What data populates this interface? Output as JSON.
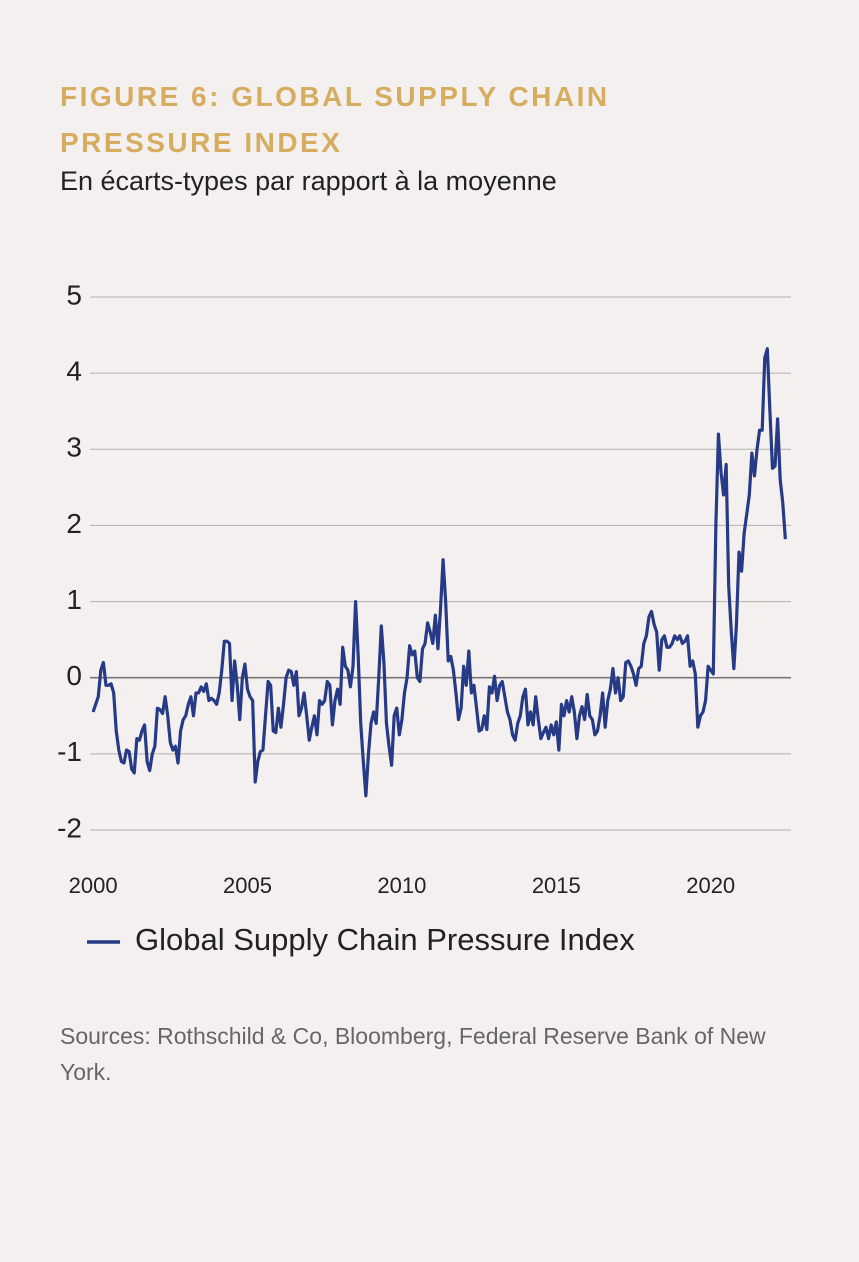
{
  "chart_data": {
    "type": "line",
    "title": "FIGURE 6: GLOBAL SUPPLY CHAIN PRESSURE INDEX",
    "subtitle": "En écarts-types par rapport à la moyenne",
    "source": "Sources: Rothschild & Co, Bloomberg, Federal Reserve Bank of New York.",
    "xlim": [
      1999.9,
      2022.6
    ],
    "xticks": [
      2000,
      2005,
      2010,
      2015,
      2020
    ],
    "ylim": [
      -2,
      5
    ],
    "yticks": [
      5,
      4,
      3,
      2,
      1,
      0,
      -1,
      -2
    ],
    "grid": true,
    "x": [
      2000,
      2000.083,
      2000.167,
      2000.25,
      2000.333,
      2000.417,
      2000.5,
      2000.583,
      2000.667,
      2000.75,
      2000.833,
      2000.917,
      2001,
      2001.083,
      2001.167,
      2001.25,
      2001.333,
      2001.417,
      2001.5,
      2001.583,
      2001.667,
      2001.75,
      2001.833,
      2001.917,
      2002,
      2002.083,
      2002.167,
      2002.25,
      2002.333,
      2002.417,
      2002.5,
      2002.583,
      2002.667,
      2002.75,
      2002.833,
      2002.917,
      2003,
      2003.083,
      2003.167,
      2003.25,
      2003.333,
      2003.417,
      2003.5,
      2003.583,
      2003.667,
      2003.75,
      2003.833,
      2003.917,
      2004,
      2004.083,
      2004.167,
      2004.25,
      2004.333,
      2004.417,
      2004.5,
      2004.583,
      2004.667,
      2004.75,
      2004.833,
      2004.917,
      2005,
      2005.083,
      2005.167,
      2005.25,
      2005.333,
      2005.417,
      2005.5,
      2005.583,
      2005.667,
      2005.75,
      2005.833,
      2005.917,
      2006,
      2006.083,
      2006.167,
      2006.25,
      2006.333,
      2006.417,
      2006.5,
      2006.583,
      2006.667,
      2006.75,
      2006.833,
      2006.917,
      2007,
      2007.083,
      2007.167,
      2007.25,
      2007.333,
      2007.417,
      2007.5,
      2007.583,
      2007.667,
      2007.75,
      2007.833,
      2007.917,
      2008,
      2008.083,
      2008.167,
      2008.25,
      2008.333,
      2008.417,
      2008.5,
      2008.583,
      2008.667,
      2008.75,
      2008.833,
      2008.917,
      2009,
      2009.083,
      2009.167,
      2009.25,
      2009.333,
      2009.417,
      2009.5,
      2009.583,
      2009.667,
      2009.75,
      2009.833,
      2009.917,
      2010,
      2010.083,
      2010.167,
      2010.25,
      2010.333,
      2010.417,
      2010.5,
      2010.583,
      2010.667,
      2010.75,
      2010.833,
      2010.917,
      2011,
      2011.083,
      2011.167,
      2011.25,
      2011.333,
      2011.417,
      2011.5,
      2011.583,
      2011.667,
      2011.75,
      2011.833,
      2011.917,
      2012,
      2012.083,
      2012.167,
      2012.25,
      2012.333,
      2012.417,
      2012.5,
      2012.583,
      2012.667,
      2012.75,
      2012.833,
      2012.917,
      2013,
      2013.083,
      2013.167,
      2013.25,
      2013.333,
      2013.417,
      2013.5,
      2013.583,
      2013.667,
      2013.75,
      2013.833,
      2013.917,
      2014,
      2014.083,
      2014.167,
      2014.25,
      2014.333,
      2014.417,
      2014.5,
      2014.583,
      2014.667,
      2014.75,
      2014.833,
      2014.917,
      2015,
      2015.083,
      2015.167,
      2015.25,
      2015.333,
      2015.417,
      2015.5,
      2015.583,
      2015.667,
      2015.75,
      2015.833,
      2015.917,
      2016,
      2016.083,
      2016.167,
      2016.25,
      2016.333,
      2016.417,
      2016.5,
      2016.583,
      2016.667,
      2016.75,
      2016.833,
      2016.917,
      2017,
      2017.083,
      2017.167,
      2017.25,
      2017.333,
      2017.417,
      2017.5,
      2017.583,
      2017.667,
      2017.75,
      2017.833,
      2017.917,
      2018,
      2018.083,
      2018.167,
      2018.25,
      2018.333,
      2018.417,
      2018.5,
      2018.583,
      2018.667,
      2018.75,
      2018.833,
      2018.917,
      2019,
      2019.083,
      2019.167,
      2019.25,
      2019.333,
      2019.417,
      2019.5,
      2019.583,
      2019.667,
      2019.75,
      2019.833,
      2019.917,
      2020,
      2020.083,
      2020.167,
      2020.25,
      2020.333,
      2020.417,
      2020.5,
      2020.583,
      2020.667,
      2020.75,
      2020.833,
      2020.917,
      2021,
      2021.083,
      2021.167,
      2021.25,
      2021.333,
      2021.417,
      2021.5,
      2021.583,
      2021.667,
      2021.75,
      2021.833,
      2021.917,
      2022,
      2022.083,
      2022.167,
      2022.25,
      2022.333,
      2022.417
    ],
    "series": [
      {
        "name": "Global Supply Chain Pressure Index",
        "color": "#263a86",
        "values": [
          -0.45,
          -0.35,
          -0.25,
          0.1,
          0.2,
          -0.1,
          -0.1,
          -0.08,
          -0.2,
          -0.7,
          -0.95,
          -1.1,
          -1.12,
          -0.95,
          -0.97,
          -1.2,
          -1.25,
          -0.8,
          -0.82,
          -0.7,
          -0.62,
          -1.1,
          -1.22,
          -1.0,
          -0.9,
          -0.4,
          -0.42,
          -0.47,
          -0.25,
          -0.5,
          -0.85,
          -0.95,
          -0.9,
          -1.12,
          -0.7,
          -0.55,
          -0.5,
          -0.35,
          -0.25,
          -0.5,
          -0.2,
          -0.2,
          -0.12,
          -0.18,
          -0.08,
          -0.3,
          -0.27,
          -0.3,
          -0.35,
          -0.2,
          0.1,
          0.48,
          0.48,
          0.45,
          -0.3,
          0.22,
          -0.1,
          -0.55,
          0.0,
          0.18,
          -0.15,
          -0.25,
          -0.3,
          -1.37,
          -1.1,
          -0.97,
          -0.95,
          -0.5,
          -0.05,
          -0.1,
          -0.7,
          -0.72,
          -0.4,
          -0.65,
          -0.35,
          0.0,
          0.1,
          0.08,
          -0.1,
          0.08,
          -0.5,
          -0.4,
          -0.2,
          -0.5,
          -0.82,
          -0.65,
          -0.5,
          -0.75,
          -0.3,
          -0.35,
          -0.3,
          -0.05,
          -0.1,
          -0.62,
          -0.3,
          -0.15,
          -0.35,
          0.4,
          0.15,
          0.1,
          -0.12,
          0.15,
          1.0,
          0.3,
          -0.6,
          -1.1,
          -1.55,
          -1.0,
          -0.6,
          -0.45,
          -0.6,
          0.0,
          0.68,
          0.2,
          -0.6,
          -0.9,
          -1.15,
          -0.5,
          -0.4,
          -0.75,
          -0.55,
          -0.2,
          0.0,
          0.42,
          0.3,
          0.35,
          0.0,
          -0.05,
          0.38,
          0.45,
          0.72,
          0.6,
          0.45,
          0.82,
          0.38,
          0.9,
          1.55,
          1.0,
          0.22,
          0.28,
          0.1,
          -0.2,
          -0.55,
          -0.4,
          0.15,
          -0.1,
          0.35,
          -0.2,
          -0.1,
          -0.4,
          -0.7,
          -0.68,
          -0.5,
          -0.68,
          -0.12,
          -0.2,
          0.02,
          -0.3,
          -0.1,
          -0.05,
          -0.25,
          -0.45,
          -0.55,
          -0.75,
          -0.82,
          -0.6,
          -0.5,
          -0.25,
          -0.15,
          -0.62,
          -0.45,
          -0.62,
          -0.25,
          -0.55,
          -0.8,
          -0.72,
          -0.65,
          -0.8,
          -0.62,
          -0.75,
          -0.58,
          -0.95,
          -0.35,
          -0.5,
          -0.3,
          -0.45,
          -0.25,
          -0.45,
          -0.8,
          -0.5,
          -0.38,
          -0.55,
          -0.22,
          -0.5,
          -0.55,
          -0.75,
          -0.7,
          -0.5,
          -0.2,
          -0.65,
          -0.3,
          -0.15,
          0.12,
          -0.2,
          0.0,
          -0.3,
          -0.25,
          0.2,
          0.22,
          0.15,
          0.05,
          -0.1,
          0.12,
          0.15,
          0.45,
          0.55,
          0.8,
          0.87,
          0.7,
          0.6,
          0.1,
          0.5,
          0.55,
          0.4,
          0.4,
          0.45,
          0.55,
          0.5,
          0.55,
          0.45,
          0.48,
          0.55,
          0.15,
          0.22,
          0.05,
          -0.65,
          -0.5,
          -0.45,
          -0.3,
          0.15,
          0.1,
          0.05,
          2.0,
          3.2,
          2.7,
          2.4,
          2.8,
          1.2,
          0.6,
          0.12,
          0.7,
          1.65,
          1.4,
          1.9,
          2.15,
          2.4,
          2.95,
          2.65,
          3.0,
          3.25,
          3.25,
          4.2,
          4.32,
          3.5,
          2.75,
          2.78,
          3.4,
          2.6,
          2.3,
          1.82
        ]
      }
    ]
  }
}
